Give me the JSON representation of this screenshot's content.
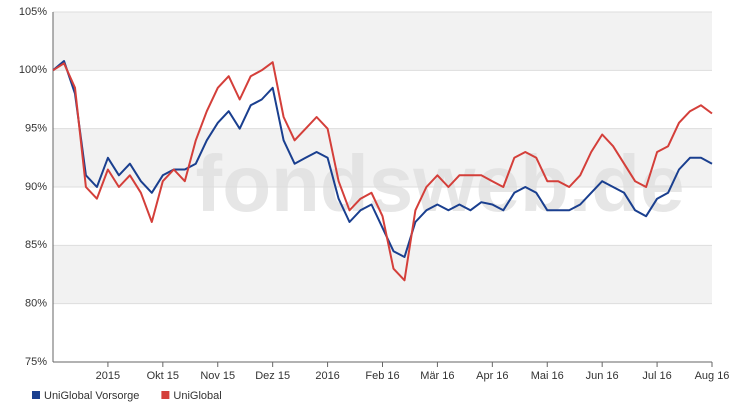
{
  "chart_data": {
    "type": "line",
    "watermark": "fondsweb.de",
    "categories": [
      null,
      null,
      null,
      null,
      null,
      "2015",
      null,
      null,
      null,
      null,
      "Okt 15",
      null,
      null,
      null,
      null,
      "Nov 15",
      null,
      null,
      null,
      null,
      "Dez 15",
      null,
      null,
      null,
      null,
      "2016",
      null,
      null,
      null,
      null,
      "Feb 16",
      null,
      null,
      null,
      null,
      "Mär 16",
      null,
      null,
      null,
      null,
      "Apr 16",
      null,
      null,
      null,
      null,
      "Mai 16",
      null,
      null,
      null,
      null,
      "Jun 16",
      null,
      null,
      null,
      null,
      "Jul 16",
      null,
      null,
      null,
      null,
      "Aug 16"
    ],
    "series": [
      {
        "name": "UniGlobal Vorsorge",
        "color": "#1a3f8f",
        "values": [
          100,
          100.8,
          98,
          91,
          90,
          92.5,
          91,
          92,
          90.5,
          89.5,
          91,
          91.5,
          91.5,
          92,
          94,
          95.5,
          96.5,
          95,
          97,
          97.5,
          98.5,
          94,
          92,
          92.5,
          93,
          92.5,
          89,
          87,
          88,
          88.5,
          86.5,
          84.5,
          84,
          87,
          88,
          88.5,
          88,
          88.5,
          88,
          88.7,
          88.5,
          88,
          89.5,
          90,
          89.5,
          88,
          88,
          88,
          88.5,
          89.5,
          90.5,
          90,
          89.5,
          88,
          87.5,
          89,
          89.5,
          91.5,
          92.5,
          92.5,
          92
        ]
      },
      {
        "name": "UniGlobal",
        "color": "#d43f3a",
        "values": [
          100,
          100.6,
          98.5,
          90,
          89,
          91.5,
          90,
          91,
          89.5,
          87,
          90.5,
          91.5,
          90.5,
          94,
          96.5,
          98.5,
          99.5,
          97.5,
          99.5,
          100,
          100.7,
          96,
          94,
          95,
          96,
          95,
          90.5,
          88,
          89,
          89.5,
          87.5,
          83,
          82,
          88,
          90,
          91,
          90,
          91,
          91,
          91,
          90.5,
          90,
          92.5,
          93,
          92.5,
          90.5,
          90.5,
          90,
          91,
          93,
          94.5,
          93.5,
          92,
          90.5,
          90,
          93,
          93.5,
          95.5,
          96.5,
          97,
          96.3
        ]
      }
    ],
    "ylim": [
      75,
      105
    ],
    "yticks": [
      {
        "value": 75,
        "label": "75%"
      },
      {
        "value": 80,
        "label": "80%"
      },
      {
        "value": 85,
        "label": "85%"
      },
      {
        "value": 90,
        "label": "90%"
      },
      {
        "value": 95,
        "label": "95%"
      },
      {
        "value": 100,
        "label": "100%"
      },
      {
        "value": 105,
        "label": "105%"
      }
    ],
    "grid": true,
    "legend": "bottom-left"
  }
}
